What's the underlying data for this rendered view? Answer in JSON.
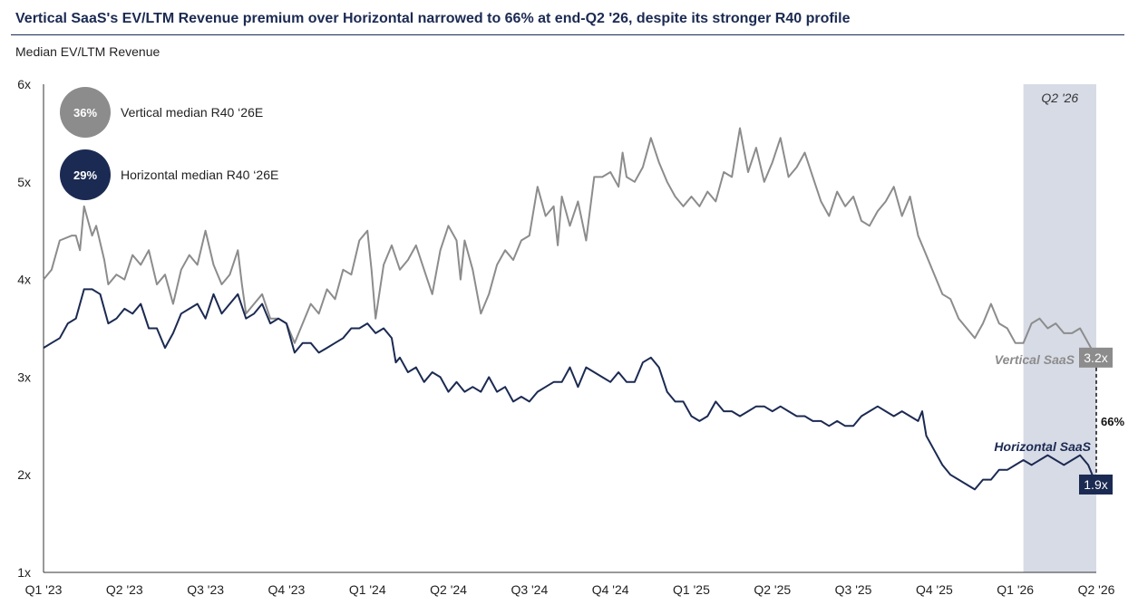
{
  "title": "Vertical SaaS's EV/LTM Revenue premium over Horizontal narrowed to 66% at end-Q2 '26, despite its stronger R40 profile",
  "subtitle": "Median EV/LTM Revenue",
  "colors": {
    "vertical": "#8c8c8c",
    "horizontal": "#1b2a52",
    "shade": "#d7dbe6",
    "axis": "#333333"
  },
  "legend": [
    {
      "value": "36%",
      "label": "Vertical median R40 ‘26E",
      "color": "#8c8c8c"
    },
    {
      "value": "29%",
      "label": "Horizontal median R40 ‘26E",
      "color": "#1b2a52"
    }
  ],
  "chart_data": {
    "type": "line",
    "x_labels": [
      "Q1 '23",
      "Q2 '23",
      "Q3 '23",
      "Q4 '23",
      "Q1 '24",
      "Q2 '24",
      "Q3 '24",
      "Q4 '24",
      "Q1 '25",
      "Q2 '25",
      "Q3 '25",
      "Q4 '25",
      "Q1 '26",
      "Q2 '26"
    ],
    "y_ticks": [
      1,
      2,
      3,
      4,
      5,
      6
    ],
    "y_tick_labels": [
      "1x",
      "2x",
      "3x",
      "4x",
      "5x",
      "6x"
    ],
    "ylim": [
      1,
      6
    ],
    "xlim": [
      0,
      13
    ],
    "highlight_period": {
      "label": "Q2 '26",
      "from": 12.1,
      "to": 13
    },
    "series": [
      {
        "name": "Vertical SaaS",
        "end_label": "3.2x",
        "points": [
          [
            0,
            4.0
          ],
          [
            0.1,
            4.1
          ],
          [
            0.2,
            4.4
          ],
          [
            0.35,
            4.45
          ],
          [
            0.4,
            4.45
          ],
          [
            0.45,
            4.3
          ],
          [
            0.5,
            4.75
          ],
          [
            0.55,
            4.6
          ],
          [
            0.6,
            4.45
          ],
          [
            0.65,
            4.55
          ],
          [
            0.75,
            4.2
          ],
          [
            0.8,
            3.95
          ],
          [
            0.9,
            4.05
          ],
          [
            1.0,
            4.0
          ],
          [
            1.1,
            4.25
          ],
          [
            1.2,
            4.15
          ],
          [
            1.3,
            4.3
          ],
          [
            1.4,
            3.95
          ],
          [
            1.5,
            4.05
          ],
          [
            1.6,
            3.75
          ],
          [
            1.7,
            4.1
          ],
          [
            1.8,
            4.25
          ],
          [
            1.9,
            4.15
          ],
          [
            2.0,
            4.5
          ],
          [
            2.1,
            4.15
          ],
          [
            2.2,
            3.95
          ],
          [
            2.3,
            4.05
          ],
          [
            2.4,
            4.3
          ],
          [
            2.45,
            3.95
          ],
          [
            2.5,
            3.65
          ],
          [
            2.6,
            3.75
          ],
          [
            2.7,
            3.85
          ],
          [
            2.8,
            3.6
          ],
          [
            2.9,
            3.6
          ],
          [
            3.0,
            3.55
          ],
          [
            3.1,
            3.35
          ],
          [
            3.2,
            3.55
          ],
          [
            3.3,
            3.75
          ],
          [
            3.4,
            3.65
          ],
          [
            3.5,
            3.9
          ],
          [
            3.6,
            3.8
          ],
          [
            3.7,
            4.1
          ],
          [
            3.8,
            4.05
          ],
          [
            3.9,
            4.4
          ],
          [
            4.0,
            4.5
          ],
          [
            4.05,
            4.1
          ],
          [
            4.1,
            3.6
          ],
          [
            4.2,
            4.15
          ],
          [
            4.3,
            4.35
          ],
          [
            4.4,
            4.1
          ],
          [
            4.5,
            4.2
          ],
          [
            4.6,
            4.35
          ],
          [
            4.7,
            4.1
          ],
          [
            4.8,
            3.85
          ],
          [
            4.9,
            4.3
          ],
          [
            5.0,
            4.55
          ],
          [
            5.1,
            4.4
          ],
          [
            5.15,
            4.0
          ],
          [
            5.2,
            4.4
          ],
          [
            5.3,
            4.1
          ],
          [
            5.4,
            3.65
          ],
          [
            5.5,
            3.85
          ],
          [
            5.6,
            4.15
          ],
          [
            5.7,
            4.3
          ],
          [
            5.8,
            4.2
          ],
          [
            5.9,
            4.4
          ],
          [
            6.0,
            4.45
          ],
          [
            6.1,
            4.95
          ],
          [
            6.2,
            4.65
          ],
          [
            6.3,
            4.75
          ],
          [
            6.35,
            4.35
          ],
          [
            6.4,
            4.85
          ],
          [
            6.5,
            4.55
          ],
          [
            6.6,
            4.8
          ],
          [
            6.7,
            4.4
          ],
          [
            6.8,
            5.05
          ],
          [
            6.9,
            5.05
          ],
          [
            7.0,
            5.1
          ],
          [
            7.1,
            4.95
          ],
          [
            7.15,
            5.3
          ],
          [
            7.2,
            5.05
          ],
          [
            7.3,
            5.0
          ],
          [
            7.4,
            5.15
          ],
          [
            7.5,
            5.45
          ],
          [
            7.6,
            5.2
          ],
          [
            7.7,
            5.0
          ],
          [
            7.8,
            4.85
          ],
          [
            7.9,
            4.75
          ],
          [
            8.0,
            4.85
          ],
          [
            8.1,
            4.75
          ],
          [
            8.2,
            4.9
          ],
          [
            8.3,
            4.8
          ],
          [
            8.4,
            5.1
          ],
          [
            8.5,
            5.05
          ],
          [
            8.6,
            5.55
          ],
          [
            8.7,
            5.1
          ],
          [
            8.8,
            5.35
          ],
          [
            8.9,
            5.0
          ],
          [
            9.0,
            5.2
          ],
          [
            9.1,
            5.45
          ],
          [
            9.2,
            5.05
          ],
          [
            9.3,
            5.15
          ],
          [
            9.4,
            5.3
          ],
          [
            9.5,
            5.05
          ],
          [
            9.6,
            4.8
          ],
          [
            9.7,
            4.65
          ],
          [
            9.8,
            4.9
          ],
          [
            9.9,
            4.75
          ],
          [
            10.0,
            4.85
          ],
          [
            10.1,
            4.6
          ],
          [
            10.2,
            4.55
          ],
          [
            10.3,
            4.7
          ],
          [
            10.4,
            4.8
          ],
          [
            10.5,
            4.95
          ],
          [
            10.6,
            4.65
          ],
          [
            10.7,
            4.85
          ],
          [
            10.8,
            4.45
          ],
          [
            10.9,
            4.25
          ],
          [
            11.0,
            4.05
          ],
          [
            11.1,
            3.85
          ],
          [
            11.2,
            3.8
          ],
          [
            11.3,
            3.6
          ],
          [
            11.4,
            3.5
          ],
          [
            11.5,
            3.4
          ],
          [
            11.6,
            3.55
          ],
          [
            11.7,
            3.75
          ],
          [
            11.8,
            3.55
          ],
          [
            11.9,
            3.5
          ],
          [
            12.0,
            3.35
          ],
          [
            12.1,
            3.35
          ],
          [
            12.2,
            3.55
          ],
          [
            12.3,
            3.6
          ],
          [
            12.4,
            3.5
          ],
          [
            12.5,
            3.55
          ],
          [
            12.6,
            3.45
          ],
          [
            12.7,
            3.45
          ],
          [
            12.8,
            3.5
          ],
          [
            12.9,
            3.35
          ],
          [
            13.0,
            3.2
          ]
        ]
      },
      {
        "name": "Horizontal SaaS",
        "end_label": "1.9x",
        "points": [
          [
            0,
            3.3
          ],
          [
            0.1,
            3.35
          ],
          [
            0.2,
            3.4
          ],
          [
            0.3,
            3.55
          ],
          [
            0.4,
            3.6
          ],
          [
            0.5,
            3.9
          ],
          [
            0.6,
            3.9
          ],
          [
            0.7,
            3.85
          ],
          [
            0.8,
            3.55
          ],
          [
            0.9,
            3.6
          ],
          [
            1.0,
            3.7
          ],
          [
            1.1,
            3.65
          ],
          [
            1.2,
            3.75
          ],
          [
            1.3,
            3.5
          ],
          [
            1.4,
            3.5
          ],
          [
            1.5,
            3.3
          ],
          [
            1.6,
            3.45
          ],
          [
            1.7,
            3.65
          ],
          [
            1.8,
            3.7
          ],
          [
            1.9,
            3.75
          ],
          [
            2.0,
            3.6
          ],
          [
            2.1,
            3.85
          ],
          [
            2.2,
            3.65
          ],
          [
            2.3,
            3.75
          ],
          [
            2.4,
            3.85
          ],
          [
            2.5,
            3.6
          ],
          [
            2.6,
            3.65
          ],
          [
            2.7,
            3.75
          ],
          [
            2.8,
            3.55
          ],
          [
            2.9,
            3.6
          ],
          [
            3.0,
            3.55
          ],
          [
            3.1,
            3.25
          ],
          [
            3.2,
            3.35
          ],
          [
            3.3,
            3.35
          ],
          [
            3.4,
            3.25
          ],
          [
            3.5,
            3.3
          ],
          [
            3.6,
            3.35
          ],
          [
            3.7,
            3.4
          ],
          [
            3.8,
            3.5
          ],
          [
            3.9,
            3.5
          ],
          [
            4.0,
            3.55
          ],
          [
            4.1,
            3.45
          ],
          [
            4.2,
            3.5
          ],
          [
            4.3,
            3.4
          ],
          [
            4.35,
            3.15
          ],
          [
            4.4,
            3.2
          ],
          [
            4.5,
            3.05
          ],
          [
            4.6,
            3.1
          ],
          [
            4.7,
            2.95
          ],
          [
            4.8,
            3.05
          ],
          [
            4.9,
            3.0
          ],
          [
            5.0,
            2.85
          ],
          [
            5.1,
            2.95
          ],
          [
            5.2,
            2.85
          ],
          [
            5.3,
            2.9
          ],
          [
            5.4,
            2.85
          ],
          [
            5.5,
            3.0
          ],
          [
            5.6,
            2.85
          ],
          [
            5.7,
            2.9
          ],
          [
            5.8,
            2.75
          ],
          [
            5.9,
            2.8
          ],
          [
            6.0,
            2.75
          ],
          [
            6.1,
            2.85
          ],
          [
            6.2,
            2.9
          ],
          [
            6.3,
            2.95
          ],
          [
            6.4,
            2.95
          ],
          [
            6.5,
            3.1
          ],
          [
            6.6,
            2.9
          ],
          [
            6.7,
            3.1
          ],
          [
            6.8,
            3.05
          ],
          [
            6.9,
            3.0
          ],
          [
            7.0,
            2.95
          ],
          [
            7.1,
            3.05
          ],
          [
            7.2,
            2.95
          ],
          [
            7.3,
            2.95
          ],
          [
            7.4,
            3.15
          ],
          [
            7.5,
            3.2
          ],
          [
            7.6,
            3.1
          ],
          [
            7.7,
            2.85
          ],
          [
            7.8,
            2.75
          ],
          [
            7.9,
            2.75
          ],
          [
            8.0,
            2.6
          ],
          [
            8.1,
            2.55
          ],
          [
            8.2,
            2.6
          ],
          [
            8.3,
            2.75
          ],
          [
            8.4,
            2.65
          ],
          [
            8.5,
            2.65
          ],
          [
            8.6,
            2.6
          ],
          [
            8.7,
            2.65
          ],
          [
            8.8,
            2.7
          ],
          [
            8.9,
            2.7
          ],
          [
            9.0,
            2.65
          ],
          [
            9.1,
            2.7
          ],
          [
            9.2,
            2.65
          ],
          [
            9.3,
            2.6
          ],
          [
            9.4,
            2.6
          ],
          [
            9.5,
            2.55
          ],
          [
            9.6,
            2.55
          ],
          [
            9.7,
            2.5
          ],
          [
            9.8,
            2.55
          ],
          [
            9.9,
            2.5
          ],
          [
            10.0,
            2.5
          ],
          [
            10.1,
            2.6
          ],
          [
            10.2,
            2.65
          ],
          [
            10.3,
            2.7
          ],
          [
            10.4,
            2.65
          ],
          [
            10.5,
            2.6
          ],
          [
            10.6,
            2.65
          ],
          [
            10.7,
            2.6
          ],
          [
            10.8,
            2.55
          ],
          [
            10.85,
            2.65
          ],
          [
            10.9,
            2.4
          ],
          [
            11.0,
            2.25
          ],
          [
            11.1,
            2.1
          ],
          [
            11.2,
            2.0
          ],
          [
            11.3,
            1.95
          ],
          [
            11.4,
            1.9
          ],
          [
            11.5,
            1.85
          ],
          [
            11.6,
            1.95
          ],
          [
            11.7,
            1.95
          ],
          [
            11.8,
            2.05
          ],
          [
            11.9,
            2.05
          ],
          [
            12.0,
            2.1
          ],
          [
            12.1,
            2.15
          ],
          [
            12.2,
            2.1
          ],
          [
            12.3,
            2.15
          ],
          [
            12.4,
            2.2
          ],
          [
            12.5,
            2.15
          ],
          [
            12.6,
            2.1
          ],
          [
            12.7,
            2.15
          ],
          [
            12.8,
            2.2
          ],
          [
            12.9,
            2.1
          ],
          [
            13.0,
            1.9
          ]
        ]
      }
    ],
    "premium_label": "66%"
  }
}
